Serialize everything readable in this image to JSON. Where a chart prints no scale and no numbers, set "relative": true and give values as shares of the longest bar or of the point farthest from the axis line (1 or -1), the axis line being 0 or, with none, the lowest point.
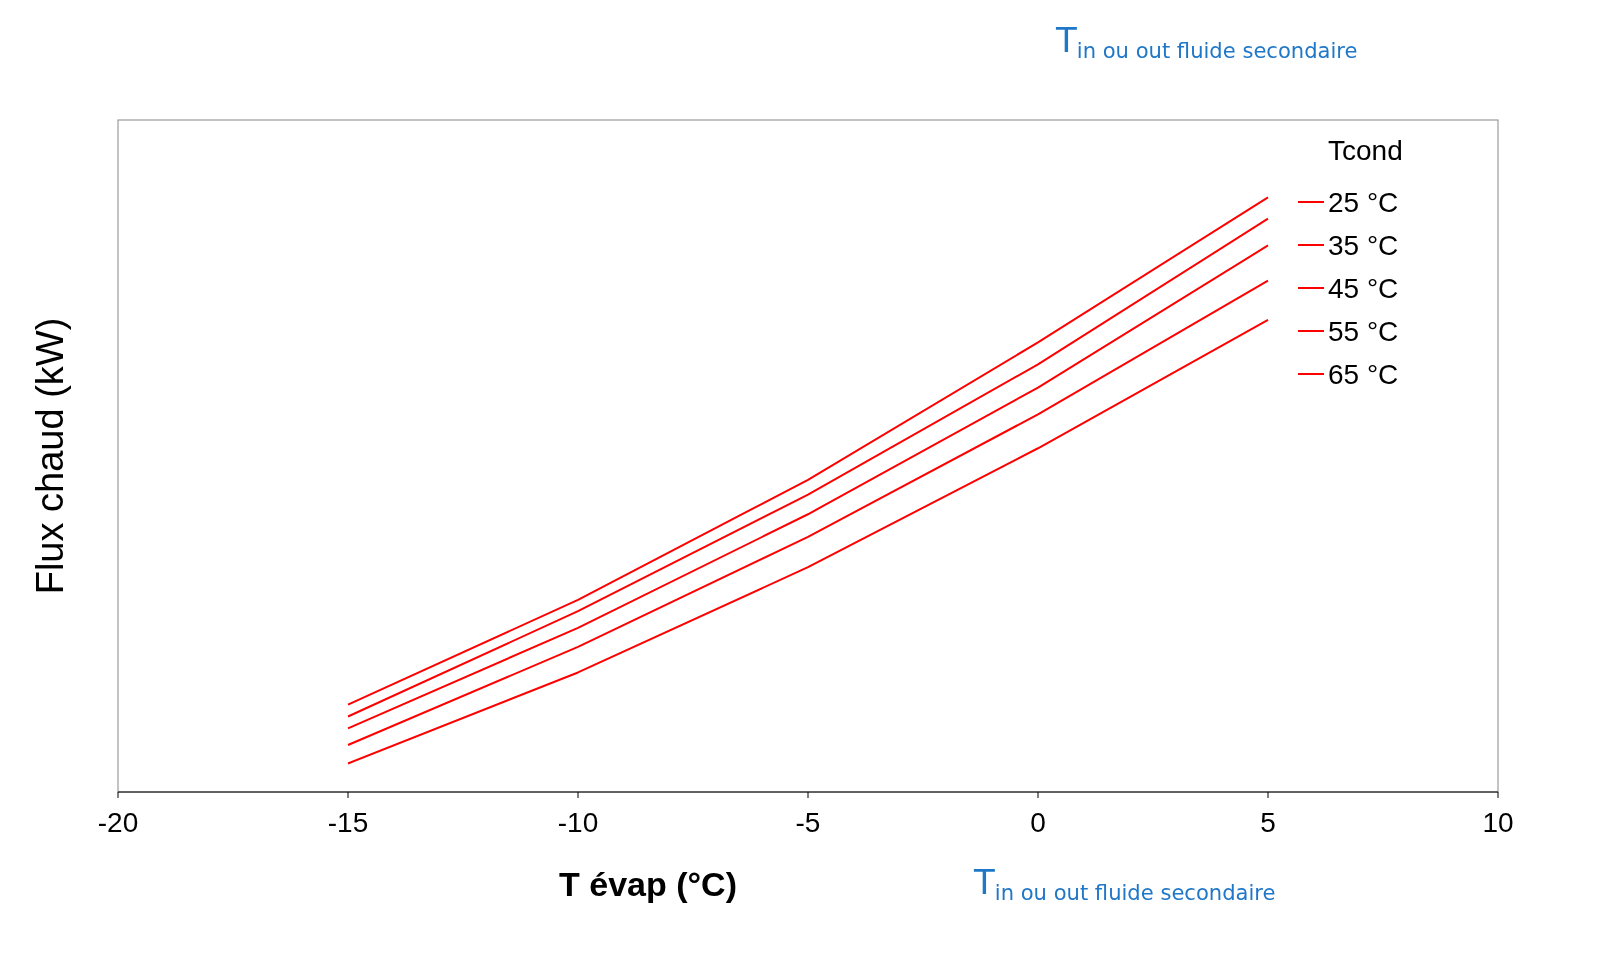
{
  "chart_data": {
    "type": "line",
    "relative": true,
    "xlabel": "T évap (°C)",
    "ylabel": "Flux chaud (kW)",
    "legend_title": "Tcond",
    "legend": "top right",
    "x": [
      -15,
      -10,
      -5,
      0,
      5
    ],
    "xlim": [
      -20,
      10
    ],
    "xticks": [
      -20,
      -15,
      -10,
      -5,
      0,
      5,
      10
    ],
    "series": [
      {
        "name": "25 °C",
        "color": "#ff0000",
        "values": [
          0.147,
          0.323,
          0.525,
          0.756,
          1
        ]
      },
      {
        "name": "35 °C",
        "color": "#ff0000",
        "values": [
          0.127,
          0.304,
          0.5,
          0.719,
          0.964
        ]
      },
      {
        "name": "45 °C",
        "color": "#ff0000",
        "values": [
          0.107,
          0.276,
          0.467,
          0.68,
          0.919
        ]
      },
      {
        "name": "55 °C",
        "color": "#ff0000",
        "values": [
          0.079,
          0.244,
          0.429,
          0.635,
          0.86
        ]
      },
      {
        "name": "65 °C",
        "color": "#ff0000",
        "values": [
          0.048,
          0.201,
          0.378,
          0.578,
          0.794
        ]
      }
    ],
    "annotations": [
      "T$_{in ou out fluide secondaire}$",
      "T$_{in ou out fluide secondaire}$"
    ]
  }
}
